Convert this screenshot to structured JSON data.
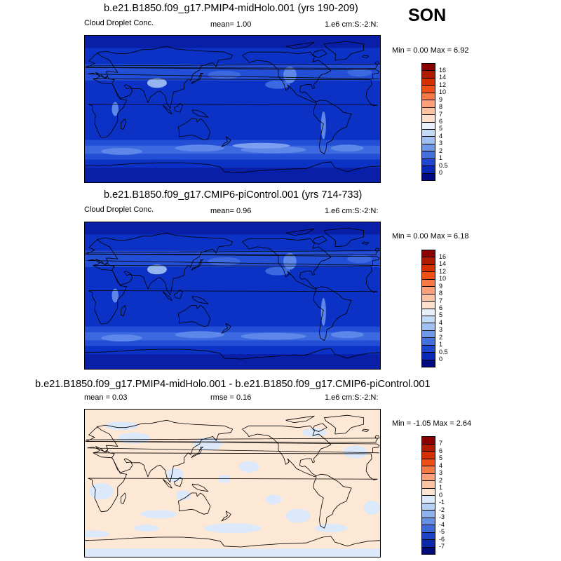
{
  "season": "SON",
  "panels": [
    {
      "title": "b.e21.B1850.f09_g17.PMIP4-midHolo.001 (yrs 190-209)",
      "left_label": "Cloud Droplet Conc.",
      "center_label": "mean=   1.00",
      "right_label": "1.e6 cm:S:-2:N:",
      "minmax": "Min =   0.00 Max =   6.92",
      "scale": "abs",
      "colorbar_labels": [
        "16",
        "14",
        "12",
        "10",
        "9",
        "8",
        "7",
        "6",
        "5",
        "4",
        "3",
        "2",
        "1",
        "0.5",
        "0"
      ]
    },
    {
      "title": "b.e21.B1850.f09_g17.CMIP6-piControl.001 (yrs 714-733)",
      "left_label": "Cloud Droplet Conc.",
      "center_label": "mean=   0.96",
      "right_label": "1.e6 cm:S:-2:N:",
      "minmax": "Min =   0.00 Max =   6.18",
      "scale": "abs",
      "colorbar_labels": [
        "16",
        "14",
        "12",
        "10",
        "9",
        "8",
        "7",
        "6",
        "5",
        "4",
        "3",
        "2",
        "1",
        "0.5",
        "0"
      ]
    },
    {
      "title": "b.e21.B1850.f09_g17.PMIP4-midHolo.001 - b.e21.B1850.f09_g17.CMIP6-piControl.001",
      "left_label": "mean =   0.03",
      "center_label": "rmse =   0.16",
      "right_label": "1.e6 cm:S:-2:N:",
      "minmax": "Min =  -1.05 Max =   2.64",
      "scale": "diff",
      "colorbar_labels": [
        "7",
        "6",
        "5",
        "4",
        "3",
        "2",
        "1",
        "0",
        "-1",
        "-2",
        "-3",
        "-4",
        "-5",
        "-6",
        "-7"
      ]
    }
  ],
  "colors": {
    "abs_scale": [
      "#8b0000",
      "#b01b00",
      "#d73000",
      "#ee4f14",
      "#f77a45",
      "#fba078",
      "#fcc3a3",
      "#fde0cc",
      "#e8f1fb",
      "#c4dbf7",
      "#9fc0f0",
      "#6f99e8",
      "#4470dc",
      "#1e46d0",
      "#0a28b8",
      "#000a82"
    ],
    "diff_scale": [
      "#8b0000",
      "#b01b00",
      "#d73000",
      "#ee4f14",
      "#f77a45",
      "#fba078",
      "#fcc3a3",
      "#ffe6d4",
      "#dceafb",
      "#b6cff5",
      "#8fb1ee",
      "#6690e6",
      "#3d6ad9",
      "#1c44c8",
      "#0a28a8",
      "#000a78"
    ],
    "abs_map": {
      "base": "#0b32c4",
      "ocean_mid": "#234fd6",
      "ocean_band": "#3c68e0",
      "ocean_light": "#5e87ea",
      "polar": "#0a1fa8",
      "land_high": "#94b4f2"
    },
    "diff_map": {
      "base": "#fde7d5",
      "pos": "#dbe9fb"
    }
  }
}
